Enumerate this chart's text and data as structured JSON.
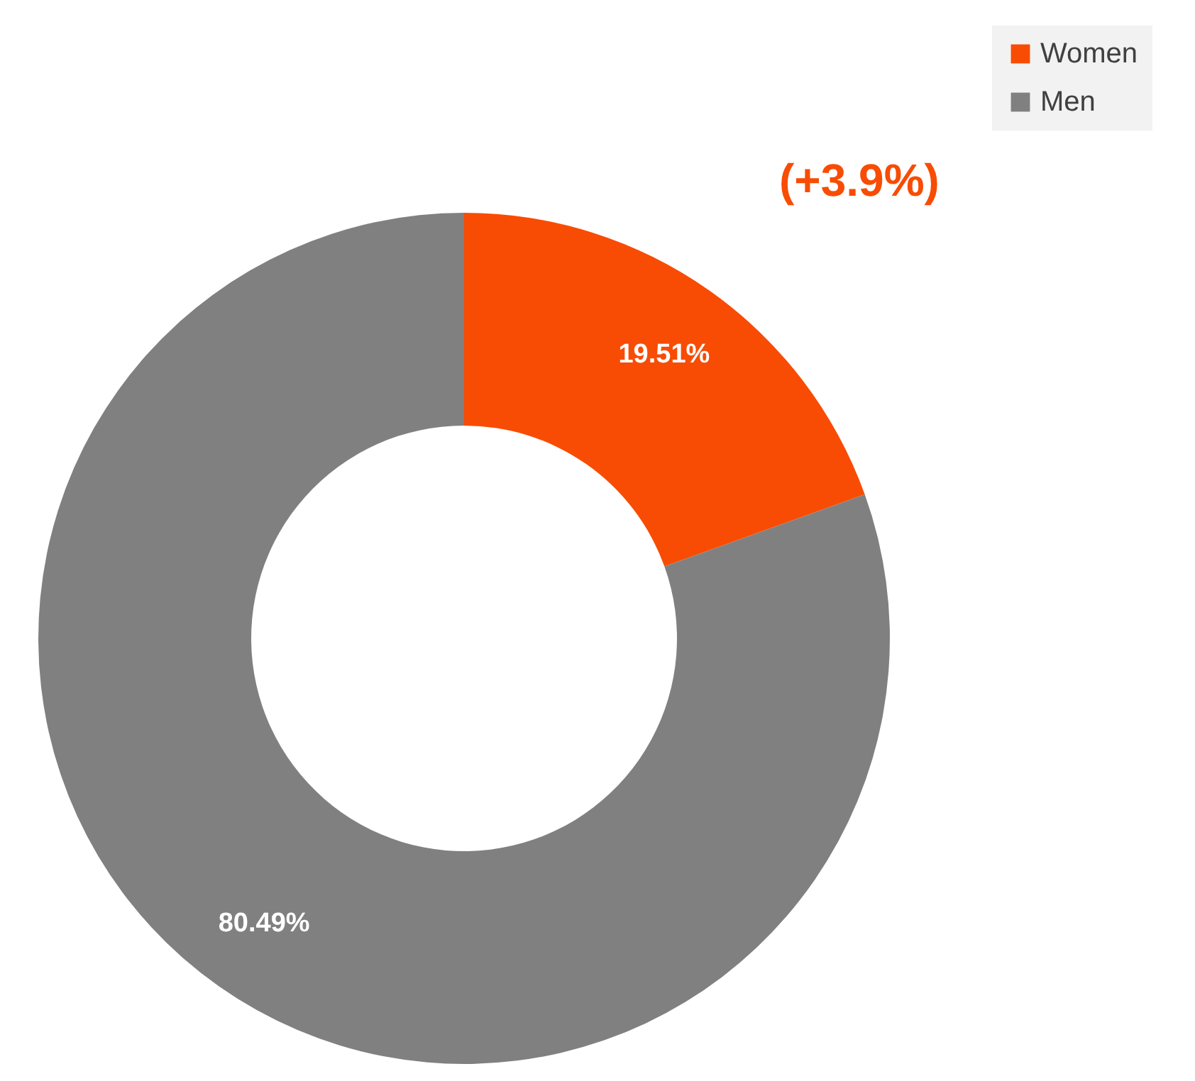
{
  "chart_data": {
    "type": "donut",
    "categories": [
      "Women",
      "Men"
    ],
    "values": [
      19.51,
      80.49
    ],
    "colors": [
      "#f84c04",
      "#808080"
    ],
    "value_labels": [
      "19.51%",
      "80.49%"
    ],
    "annotations": [
      "(+3.9%)"
    ],
    "legend": "top right"
  }
}
